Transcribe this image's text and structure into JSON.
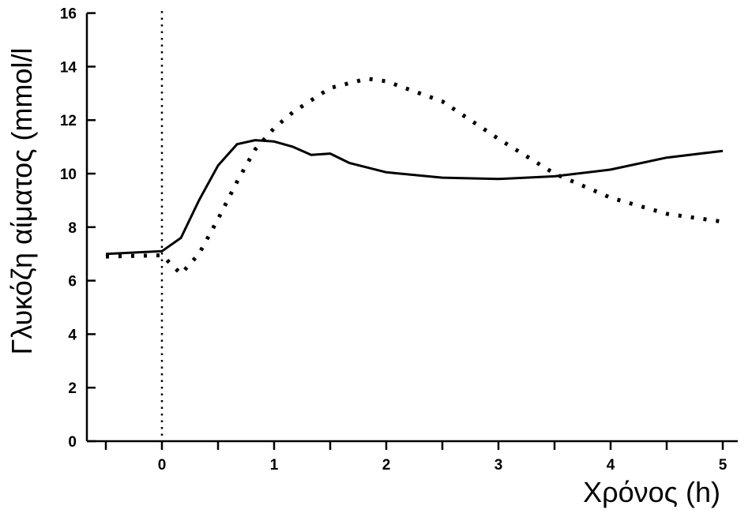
{
  "chart_data": {
    "type": "line",
    "xlabel": "Χρόνος (h)",
    "ylabel": "Γλυκόζη αίματος (mmol/l",
    "xlim": [
      -0.5,
      5.1
    ],
    "ylim": [
      0,
      16
    ],
    "x_ticks": [
      0,
      1,
      2,
      3,
      4,
      5
    ],
    "x_minor_ticks": [
      -0.5,
      0.5,
      1.5,
      2.5,
      3.5,
      4.5
    ],
    "y_ticks": [
      0,
      2,
      4,
      6,
      8,
      10,
      12,
      14,
      16
    ],
    "x_tick_labels": [
      "0",
      "1",
      "2",
      "3",
      "4",
      "5"
    ],
    "y_tick_labels": [
      "0",
      "2",
      "4",
      "6",
      "8",
      "10",
      "12",
      "14",
      "16"
    ],
    "grid": false,
    "reference_line": {
      "x": 0,
      "style": "dotted"
    },
    "series": [
      {
        "style": "solid",
        "color": "#000000",
        "x": [
          -0.5,
          0,
          0.17,
          0.33,
          0.5,
          0.67,
          0.83,
          1.0,
          1.17,
          1.33,
          1.5,
          1.67,
          2.0,
          2.5,
          3.0,
          3.5,
          4.0,
          4.5,
          5.0
        ],
        "y": [
          7.0,
          7.1,
          7.6,
          9.0,
          10.3,
          11.1,
          11.25,
          11.2,
          11.0,
          10.7,
          10.75,
          10.4,
          10.05,
          9.85,
          9.8,
          9.9,
          10.15,
          10.6,
          10.85
        ]
      },
      {
        "style": "dotted",
        "color": "#000000",
        "x": [
          -0.5,
          0,
          0.17,
          0.33,
          0.5,
          0.67,
          0.83,
          1.0,
          1.17,
          1.5,
          1.83,
          2.0,
          2.5,
          3.0,
          3.5,
          4.0,
          4.5,
          5.0
        ],
        "y": [
          6.9,
          6.95,
          6.25,
          7.0,
          8.3,
          9.7,
          10.9,
          11.7,
          12.3,
          13.2,
          13.55,
          13.45,
          12.7,
          11.3,
          10.0,
          9.1,
          8.5,
          8.2
        ]
      }
    ]
  }
}
